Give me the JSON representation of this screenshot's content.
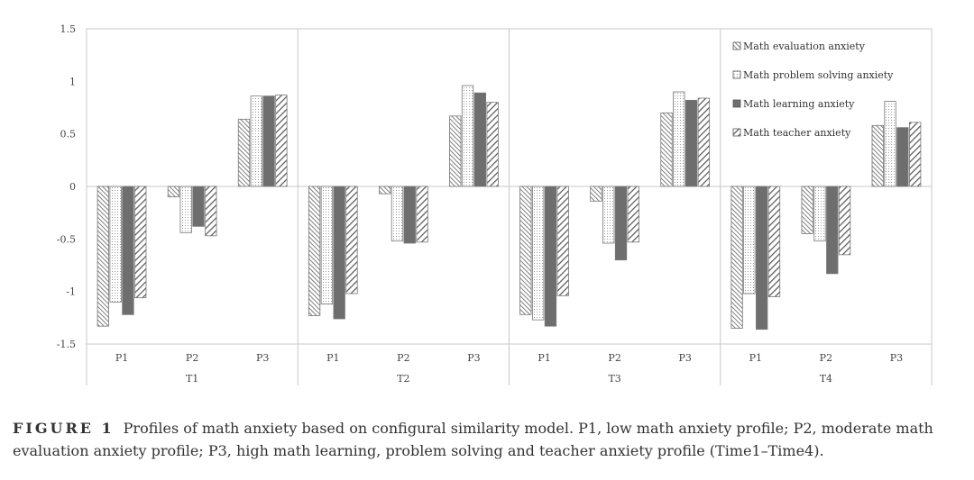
{
  "chart_data": {
    "type": "bar",
    "groups": [
      "T1",
      "T2",
      "T3",
      "T4"
    ],
    "categories": [
      "P1",
      "P2",
      "P3"
    ],
    "ylim": [
      -1.5,
      1.5
    ],
    "yticks": [
      "1.5",
      "1",
      "0.5",
      "0",
      "-0.5",
      "-1",
      "-1.5"
    ],
    "ytick_values": [
      1.5,
      1,
      0.5,
      0,
      -0.5,
      -1,
      -1.5
    ],
    "legend_position": "top-right",
    "grid": false,
    "series": [
      {
        "name": "Math evaluation anxiety",
        "pattern": "backslash-hatch",
        "values": [
          [
            -1.33,
            -0.1,
            0.64
          ],
          [
            -1.23,
            -0.07,
            0.67
          ],
          [
            -1.22,
            -0.14,
            0.7
          ],
          [
            -1.35,
            -0.45,
            0.58
          ]
        ]
      },
      {
        "name": "Math problem solving anxiety",
        "pattern": "dotted",
        "values": [
          [
            -1.1,
            -0.44,
            0.86
          ],
          [
            -1.12,
            -0.52,
            0.96
          ],
          [
            -1.27,
            -0.54,
            0.9
          ],
          [
            -1.02,
            -0.52,
            0.81
          ]
        ]
      },
      {
        "name": "Math learning anxiety",
        "pattern": "solid",
        "color": "#6e6e6e",
        "values": [
          [
            -1.22,
            -0.38,
            0.86
          ],
          [
            -1.26,
            -0.54,
            0.89
          ],
          [
            -1.33,
            -0.7,
            0.82
          ],
          [
            -1.36,
            -0.83,
            0.56
          ]
        ]
      },
      {
        "name": "Math teacher anxiety",
        "pattern": "forward-hatch",
        "values": [
          [
            -1.06,
            -0.47,
            0.87
          ],
          [
            -1.02,
            -0.53,
            0.8
          ],
          [
            -1.04,
            -0.53,
            0.84
          ],
          [
            -1.05,
            -0.65,
            0.61
          ]
        ]
      }
    ]
  },
  "caption": {
    "label": "FIGURE 1",
    "text": "Profiles of math anxiety based on configural similarity model. P1, low math anxiety profile; P2, moderate math evaluation anxiety profile; P3, high math learning, problem solving and teacher anxiety profile (Time1–Time4)."
  }
}
